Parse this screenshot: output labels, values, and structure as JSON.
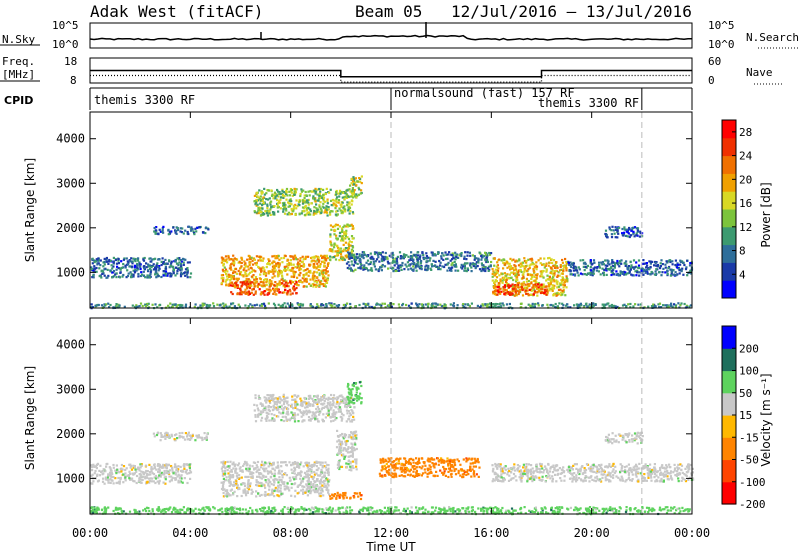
{
  "header": {
    "station": "Adak West (fitACF)",
    "beam": "Beam 05",
    "dates": "12/Jul/2016 – 13/Jul/2016"
  },
  "chart_data": [
    {
      "type": "line",
      "panel": "noise",
      "left_label": "N.Sky",
      "right_label": "N.Search",
      "left_ticks": [
        "10^5",
        "10^0"
      ],
      "right_ticks": [
        "10^5",
        "10^0"
      ],
      "series": [
        {
          "name": "N.Sky",
          "style": "solid"
        },
        {
          "name": "N.Search",
          "style": "dotted"
        }
      ]
    },
    {
      "type": "line",
      "panel": "frequency",
      "left_label_lines": [
        "Freq.",
        "[MHz]"
      ],
      "right_label": "Nave",
      "left_ticks": [
        18,
        8
      ],
      "right_ticks": [
        60,
        0
      ],
      "series": [
        {
          "name": "Freq.",
          "style": "solid",
          "points": [
            [
              0,
              13
            ],
            [
              10,
              13
            ],
            [
              10,
              10.5
            ],
            [
              18,
              10.5
            ],
            [
              18,
              13
            ],
            [
              24,
              13
            ]
          ]
        },
        {
          "name": "Nave",
          "style": "dotted",
          "points": [
            [
              0,
              18
            ],
            [
              10,
              18
            ],
            [
              10,
              2
            ],
            [
              18,
              2
            ],
            [
              18,
              18
            ],
            [
              24,
              18
            ]
          ]
        }
      ]
    },
    {
      "type": "table",
      "panel": "cpid",
      "label": "CPID",
      "segments": [
        {
          "text": "themis 3300 RF",
          "start": 0,
          "end": 12
        },
        {
          "text": "normalsound (fast) 157 RF",
          "start": 12,
          "end": 22
        },
        {
          "text": "themis 3300 RF",
          "start": 18,
          "end": 22
        }
      ],
      "dividers": [
        12,
        22
      ]
    },
    {
      "type": "heatmap",
      "panel": "power",
      "ylabel": "Slant Range [km]",
      "ylim": [
        200,
        4600
      ],
      "yticks": [
        1000,
        2000,
        3000,
        4000
      ],
      "colorbar_label": "Power [dB]",
      "colorbar_ticks": [
        4,
        8,
        12,
        16,
        20,
        24,
        28
      ],
      "colorbar_range": [
        0,
        30
      ],
      "colors": [
        "#0000ff",
        "#1a3aa8",
        "#2e6e9a",
        "#3c9a70",
        "#7cc43c",
        "#d8d824",
        "#f0a000",
        "#f07000",
        "#f03000",
        "#ff0000"
      ],
      "blobs": [
        {
          "t0": 0,
          "t1": 4,
          "r0": 900,
          "r1": 1350,
          "v": 7
        },
        {
          "t0": 2.5,
          "t1": 4.7,
          "r0": 1880,
          "r1": 2050,
          "v": 7
        },
        {
          "t0": 5.2,
          "t1": 9.5,
          "r0": 700,
          "r1": 1400,
          "v": 19
        },
        {
          "t0": 5.5,
          "t1": 8.2,
          "r0": 520,
          "r1": 820,
          "v": 24
        },
        {
          "t0": 6.5,
          "t1": 10.5,
          "r0": 2300,
          "r1": 2900,
          "v": 14
        },
        {
          "t0": 9.5,
          "t1": 10.5,
          "r0": 1300,
          "r1": 2100,
          "v": 16
        },
        {
          "t0": 10.3,
          "t1": 10.8,
          "r0": 2700,
          "r1": 3200,
          "v": 15
        },
        {
          "t0": 10.2,
          "t1": 16,
          "r0": 1050,
          "r1": 1480,
          "v": 8
        },
        {
          "t0": 16,
          "t1": 19,
          "r0": 500,
          "r1": 1350,
          "v": 18
        },
        {
          "t0": 16.2,
          "t1": 18.2,
          "r0": 520,
          "r1": 760,
          "v": 25
        },
        {
          "t0": 19,
          "t1": 24,
          "r0": 950,
          "r1": 1300,
          "v": 7
        },
        {
          "t0": 20.5,
          "t1": 22,
          "r0": 1800,
          "r1": 2050,
          "v": 6
        },
        {
          "t0": 0,
          "t1": 24,
          "r0": 220,
          "r1": 330,
          "v": 10
        }
      ]
    },
    {
      "type": "heatmap",
      "panel": "velocity",
      "ylabel": "Slant Range [km]",
      "ylim": [
        200,
        4600
      ],
      "yticks": [
        1000,
        2000,
        3000,
        4000
      ],
      "colorbar_label": "Velocity [m s⁻¹]",
      "colorbar_ticks": [
        200,
        100,
        50,
        15,
        -15,
        -50,
        -100,
        -200
      ],
      "colors": [
        "#0000ff",
        "#1e6f5c",
        "#5ed35e",
        "#c8c8c8",
        "#ffb800",
        "#ff8400",
        "#ff4400",
        "#ff0000"
      ],
      "blobs": [
        {
          "t0": 0,
          "t1": 4,
          "r0": 900,
          "r1": 1350,
          "v": 3
        },
        {
          "t0": 2.5,
          "t1": 4.7,
          "r0": 1880,
          "r1": 2050,
          "v": 3
        },
        {
          "t0": 5.2,
          "t1": 9.5,
          "r0": 620,
          "r1": 1400,
          "v": 3
        },
        {
          "t0": 6.5,
          "t1": 10.5,
          "r0": 2300,
          "r1": 2900,
          "v": 3
        },
        {
          "t0": 9.8,
          "t1": 10.6,
          "r0": 1200,
          "r1": 2100,
          "v": 3
        },
        {
          "t0": 10.2,
          "t1": 10.8,
          "r0": 2700,
          "r1": 3200,
          "v": 2
        },
        {
          "t0": 11.5,
          "t1": 15.5,
          "r0": 1050,
          "r1": 1480,
          "v": 5
        },
        {
          "t0": 9.5,
          "t1": 10.8,
          "r0": 560,
          "r1": 700,
          "v": 5
        },
        {
          "t0": 16,
          "t1": 24,
          "r0": 950,
          "r1": 1350,
          "v": 3
        },
        {
          "t0": 20.5,
          "t1": 22,
          "r0": 1800,
          "r1": 2050,
          "v": 3
        },
        {
          "t0": 0,
          "t1": 24,
          "r0": 220,
          "r1": 380,
          "v": 2
        }
      ]
    }
  ],
  "time_axis": {
    "label": "Time UT",
    "ticks": [
      "00:00",
      "04:00",
      "08:00",
      "12:00",
      "16:00",
      "20:00",
      "00:00"
    ]
  }
}
